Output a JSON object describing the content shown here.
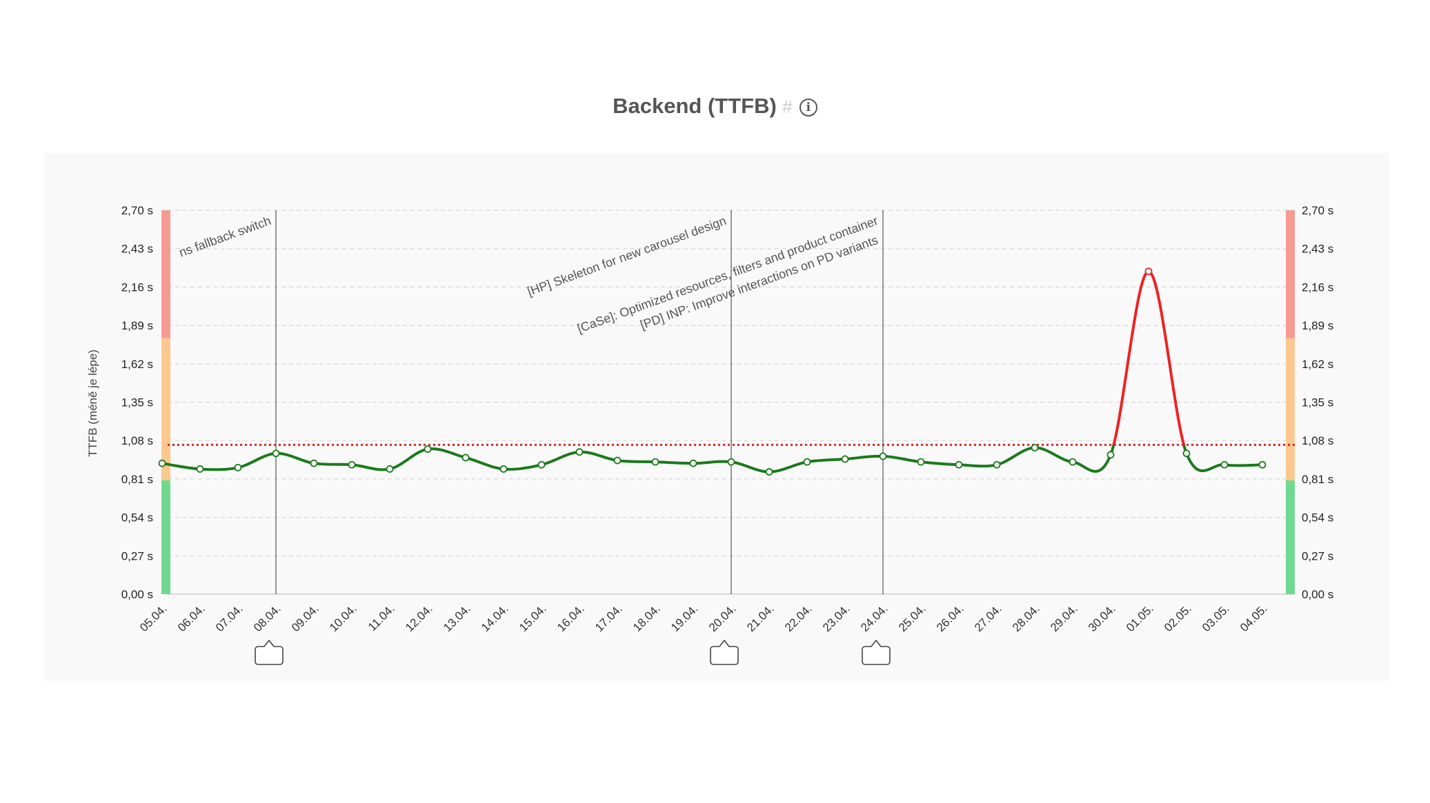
{
  "header": {
    "title": "Backend (TTFB)",
    "hash": "#",
    "info_icon": "info-icon"
  },
  "chart_data": {
    "type": "line",
    "title": "Backend (TTFB)",
    "ylabel": "TTFB (méně je lépe)",
    "ylim": [
      0,
      2.7
    ],
    "y_ticks": [
      "0,00 s",
      "0,27 s",
      "0,54 s",
      "0,81 s",
      "1,08 s",
      "1,35 s",
      "1,62 s",
      "1,89 s",
      "2,16 s",
      "2,43 s",
      "2,70 s"
    ],
    "categories": [
      "05.04.",
      "06.04.",
      "07.04.",
      "08.04.",
      "09.04.",
      "10.04.",
      "11.04.",
      "12.04.",
      "13.04.",
      "14.04.",
      "15.04.",
      "16.04.",
      "17.04.",
      "18.04.",
      "19.04.",
      "20.04.",
      "21.04.",
      "22.04.",
      "23.04.",
      "24.04.",
      "25.04.",
      "26.04.",
      "27.04.",
      "28.04.",
      "29.04.",
      "30.04.",
      "01.05.",
      "02.05.",
      "03.05.",
      "04.05."
    ],
    "series": [
      {
        "values": [
          0.92,
          0.88,
          0.89,
          0.99,
          0.92,
          0.91,
          0.88,
          1.02,
          0.96,
          0.88,
          0.91,
          1.0,
          0.94,
          0.93,
          0.92,
          0.93,
          0.86,
          0.93,
          0.95,
          0.97,
          0.93,
          0.91,
          0.91,
          1.03,
          0.93,
          0.98,
          2.27,
          0.99,
          0.91,
          0.91
        ]
      }
    ],
    "threshold": 1.05,
    "threshold_color": "#dd2222",
    "line_color": "#1a7a1a",
    "above_threshold_color": "#ee2222",
    "bands": [
      {
        "from": 0,
        "to": 0.8,
        "color": "#6fd98f"
      },
      {
        "from": 0.8,
        "to": 1.8,
        "color": "#fdc88f"
      },
      {
        "from": 1.8,
        "to": 2.7,
        "color": "#f79a92"
      }
    ],
    "grid": true,
    "annotations": [
      {
        "category": "08.04.",
        "text": "ns fallback switch",
        "icon": "annotation-bubble-icon"
      },
      {
        "category": "20.04.",
        "text": "[HP] Skeleton for new carousel design",
        "icon": "annotation-bubble-icon"
      },
      {
        "category": "24.04.",
        "text": "[CaSe]: Optimized resources, filters and product container",
        "text2": "[PD] INP: Improve interactions on PD variants",
        "icon": "annotation-bubble-icon"
      }
    ]
  }
}
